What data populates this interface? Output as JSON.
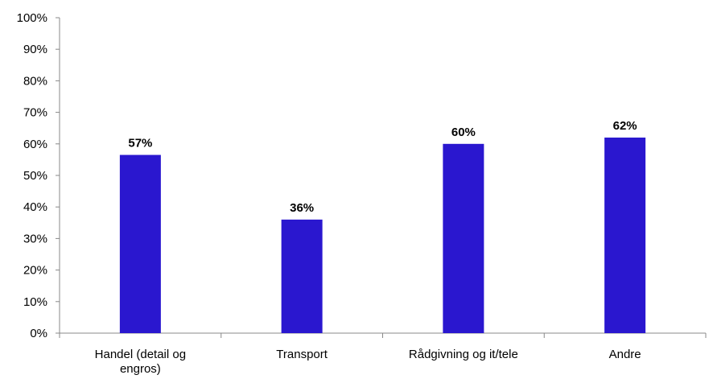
{
  "chart_data": {
    "type": "bar",
    "title": "",
    "xlabel": "",
    "ylabel": "",
    "categories": [
      "Handel (detail og engros)",
      "Transport",
      "Rådgivning og it/tele",
      "Andre"
    ],
    "category_label_lines": [
      [
        "Handel (detail og",
        "engros)"
      ],
      [
        "Transport"
      ],
      [
        "Rådgivning og it/tele"
      ],
      [
        "Andre"
      ]
    ],
    "values": [
      56.5,
      36,
      60,
      62
    ],
    "data_labels": [
      "57%",
      "36%",
      "60%",
      "62%"
    ],
    "ylim": [
      0,
      100
    ],
    "yticks": [
      0,
      10,
      20,
      30,
      40,
      50,
      60,
      70,
      80,
      90,
      100
    ],
    "ytick_labels": [
      "0%",
      "10%",
      "20%",
      "30%",
      "40%",
      "50%",
      "60%",
      "70%",
      "80%",
      "90%",
      "100%"
    ],
    "grid": false,
    "legend": "none",
    "bar_color": "#2a17cf"
  }
}
